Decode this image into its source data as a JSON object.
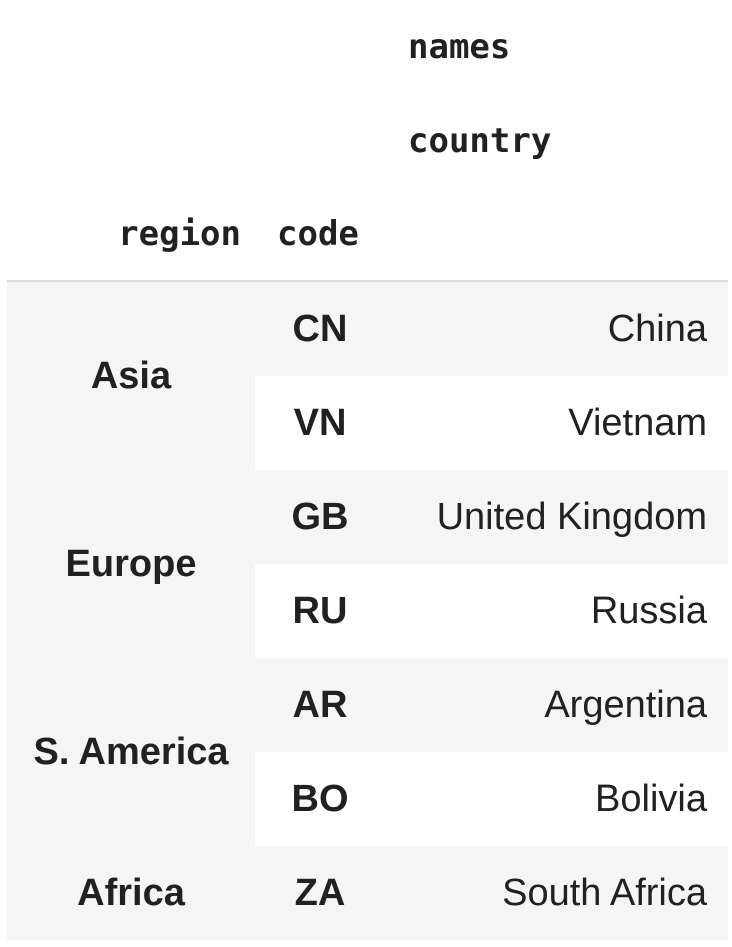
{
  "table": {
    "column_level_names": [
      "names",
      "country"
    ],
    "index_names": [
      "region",
      "code"
    ],
    "rows": [
      {
        "region": "Asia",
        "code": "CN",
        "country": "China"
      },
      {
        "region": "",
        "code": "VN",
        "country": "Vietnam"
      },
      {
        "region": "Europe",
        "code": "GB",
        "country": "United Kingdom"
      },
      {
        "region": "",
        "code": "RU",
        "country": "Russia"
      },
      {
        "region": "S. America",
        "code": "AR",
        "country": "Argentina"
      },
      {
        "region": "",
        "code": "BO",
        "country": "Bolivia"
      },
      {
        "region": "Africa",
        "code": "ZA",
        "country": "South Africa"
      }
    ]
  },
  "colors": {
    "stripe": "#f5f5f5",
    "text": "#212121",
    "divider": "#dcdcdc"
  }
}
